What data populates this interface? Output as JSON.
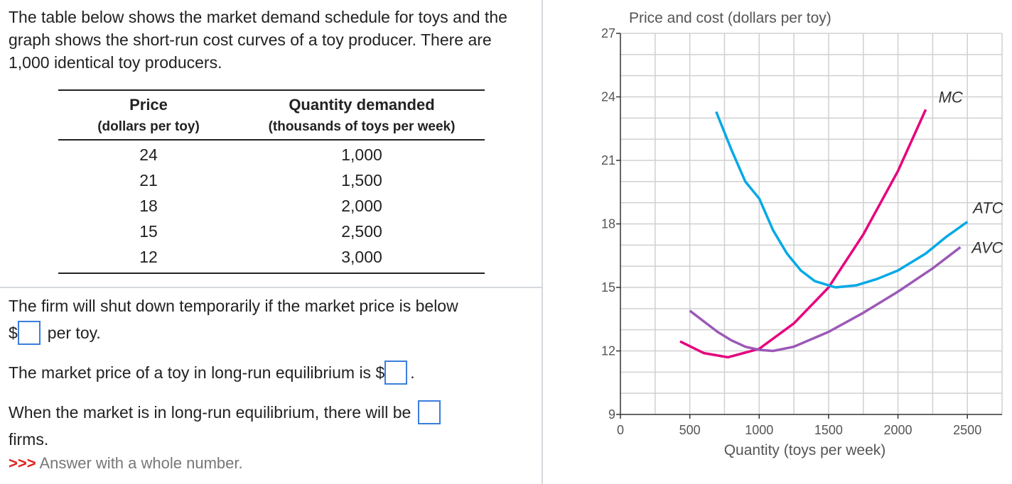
{
  "intro": "The table below shows the market demand schedule for toys and the graph shows the short-run cost curves of a toy producer. There are 1,000 identical toy producers.",
  "table": {
    "headers": [
      "Price",
      "Quantity demanded"
    ],
    "subheaders": [
      "(dollars per toy)",
      "(thousands of toys per week)"
    ],
    "rows": [
      [
        "24",
        "1,000"
      ],
      [
        "21",
        "1,500"
      ],
      [
        "18",
        "2,000"
      ],
      [
        "15",
        "2,500"
      ],
      [
        "12",
        "3,000"
      ]
    ]
  },
  "questions": {
    "q1_text": "The firm will shut down temporarily if the market price is below",
    "q1_prefix": "$",
    "q1_suffix": "per toy.",
    "q2_text": "The market price of a toy in long-run equilibrium is $",
    "q2_suffix": ".",
    "q3_text": "When the market is in long-run equilibrium, there will be",
    "q3_suffix": "firms.",
    "hint_marker": ">>>",
    "hint": "Answer with a whole number."
  },
  "chart_data": {
    "type": "line",
    "title": "Price and cost (dollars per toy)",
    "x_label": "Quantity (toys per week)",
    "xlim": [
      0,
      2750
    ],
    "ylim": [
      9,
      27
    ],
    "xticks": [
      0,
      500,
      1000,
      1500,
      2000,
      2500
    ],
    "yticks": [
      9,
      12,
      15,
      18,
      21,
      24,
      27
    ],
    "grid": true,
    "x_minor_step": 250,
    "y_minor_step": 1,
    "series": [
      {
        "name": "MC",
        "color": "#e6007e",
        "x": [
          430,
          600,
          775,
          1000,
          1250,
          1500,
          1750,
          2000,
          2200
        ],
        "values": [
          12.45,
          11.9,
          11.7,
          12.1,
          13.3,
          15.0,
          17.5,
          20.5,
          23.4
        ]
      },
      {
        "name": "ATC",
        "color": "#00a9e6",
        "x": [
          690,
          800,
          900,
          1000,
          1100,
          1200,
          1300,
          1400,
          1550,
          1700,
          1850,
          2000,
          2200,
          2350,
          2500
        ],
        "values": [
          23.3,
          21.5,
          20.0,
          19.2,
          17.7,
          16.6,
          15.8,
          15.3,
          15.0,
          15.1,
          15.4,
          15.8,
          16.6,
          17.4,
          18.1
        ]
      },
      {
        "name": "AVC",
        "color": "#9b59b6",
        "x": [
          500,
          600,
          700,
          800,
          900,
          1000,
          1100,
          1250,
          1500,
          1750,
          2000,
          2250,
          2450
        ],
        "values": [
          13.9,
          13.4,
          12.9,
          12.5,
          12.2,
          12.05,
          12.0,
          12.2,
          12.9,
          13.8,
          14.8,
          15.9,
          16.9
        ]
      }
    ]
  }
}
